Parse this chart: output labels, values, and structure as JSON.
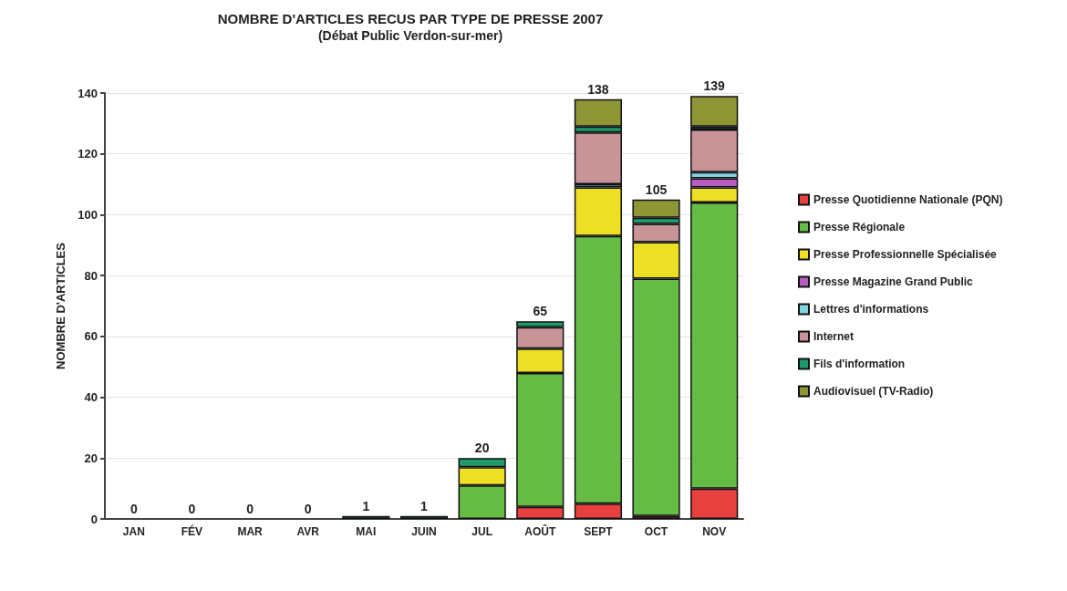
{
  "chart_data": {
    "type": "bar",
    "title": "NOMBRE D'ARTICLES RECUS PAR TYPE DE PRESSE 2007",
    "subtitle": "(Débat Public Verdon-sur-mer)",
    "ylabel": "NOMBRE D'ARTICLES",
    "categories": [
      "JAN",
      "FÉV",
      "MAR",
      "AVR",
      "MAI",
      "JUIN",
      "JUL",
      "AOÛT",
      "SEPT",
      "OCT",
      "NOV"
    ],
    "stacked": true,
    "series": [
      {
        "name": "Presse Quotidienne Nationale (PQN)",
        "color": "#e8403c",
        "values": [
          0,
          0,
          0,
          0,
          0,
          0,
          0,
          4,
          5,
          1,
          10
        ]
      },
      {
        "name": "Presse Régionale",
        "color": "#66bb44",
        "values": [
          0,
          0,
          0,
          0,
          0,
          0,
          11,
          44,
          88,
          78,
          94
        ]
      },
      {
        "name": "Presse Professionnelle Spécialisée",
        "color": "#ecdf24",
        "values": [
          0,
          0,
          0,
          0,
          0,
          0,
          6,
          8,
          16,
          12,
          5
        ]
      },
      {
        "name": "Presse Magazine Grand Public",
        "color": "#b95bc0",
        "values": [
          0,
          0,
          0,
          0,
          0,
          0,
          0,
          0,
          0,
          0,
          3
        ]
      },
      {
        "name": "Lettres d'informations",
        "color": "#7fd4e0",
        "values": [
          0,
          0,
          0,
          0,
          0,
          0,
          0,
          0,
          1,
          0,
          2
        ]
      },
      {
        "name": "Internet",
        "color": "#c99497",
        "values": [
          0,
          0,
          0,
          0,
          0,
          0,
          0,
          7,
          17,
          6,
          14
        ]
      },
      {
        "name": "Fils d'information",
        "color": "#1f9a6a",
        "values": [
          0,
          0,
          0,
          0,
          1,
          1,
          3,
          2,
          2,
          2,
          1
        ]
      },
      {
        "name": "Audiovisuel (TV-Radio)",
        "color": "#8e9636",
        "values": [
          0,
          0,
          0,
          0,
          0,
          0,
          0,
          0,
          9,
          6,
          10
        ]
      }
    ],
    "totals": [
      "0",
      "0",
      "0",
      "0",
      "1",
      "1",
      "20",
      "65",
      "138",
      "105",
      "139"
    ],
    "ylim": [
      0,
      140
    ],
    "yticks": [
      0,
      20,
      40,
      60,
      80,
      100,
      120,
      140
    ],
    "grid": "y",
    "legend": "right"
  }
}
